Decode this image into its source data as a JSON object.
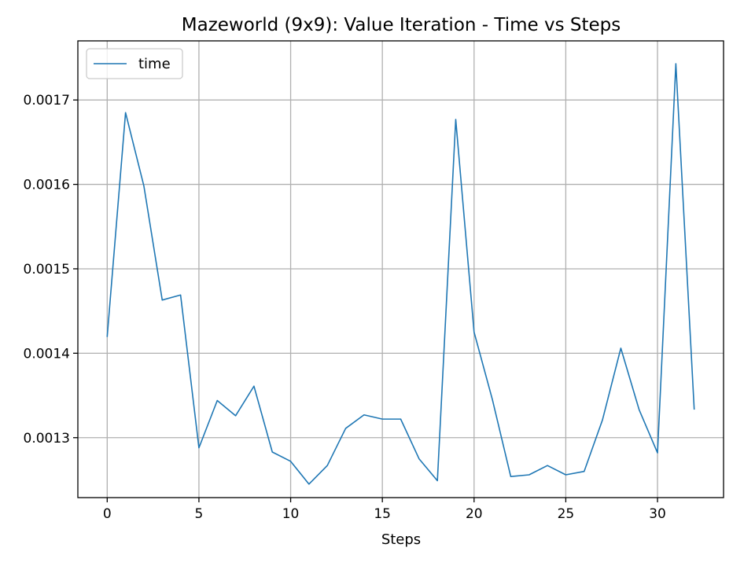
{
  "chart_data": {
    "type": "line",
    "title": "Mazeworld (9x9): Value Iteration - Time vs Steps",
    "xlabel": "Steps",
    "ylabel": "",
    "xlim": [
      -1.6,
      33.6
    ],
    "ylim": [
      0.001229,
      0.00177
    ],
    "xticks": [
      0,
      5,
      10,
      15,
      20,
      25,
      30
    ],
    "yticks": [
      0.0013,
      0.0014,
      0.0015,
      0.0016,
      0.0017
    ],
    "ytick_labels": [
      "0.0013",
      "0.0014",
      "0.0015",
      "0.0016",
      "0.0017"
    ],
    "grid": true,
    "legend": "top-left",
    "series": [
      {
        "name": "time",
        "color": "#1f77b4",
        "x": [
          0,
          1,
          2,
          3,
          4,
          5,
          6,
          7,
          8,
          9,
          10,
          11,
          12,
          13,
          14,
          15,
          16,
          17,
          18,
          19,
          20,
          21,
          22,
          23,
          24,
          25,
          26,
          27,
          28,
          29,
          30,
          31,
          32
        ],
        "y": [
          0.00142,
          0.001685,
          0.001598,
          0.001463,
          0.001469,
          0.001288,
          0.001344,
          0.001326,
          0.001361,
          0.001283,
          0.001272,
          0.001245,
          0.001267,
          0.001311,
          0.001327,
          0.001322,
          0.001322,
          0.001275,
          0.001249,
          0.001677,
          0.001425,
          0.001345,
          0.001254,
          0.001256,
          0.001267,
          0.001256,
          0.00126,
          0.001321,
          0.001406,
          0.001333,
          0.001282,
          0.001743,
          0.001334
        ]
      }
    ]
  }
}
